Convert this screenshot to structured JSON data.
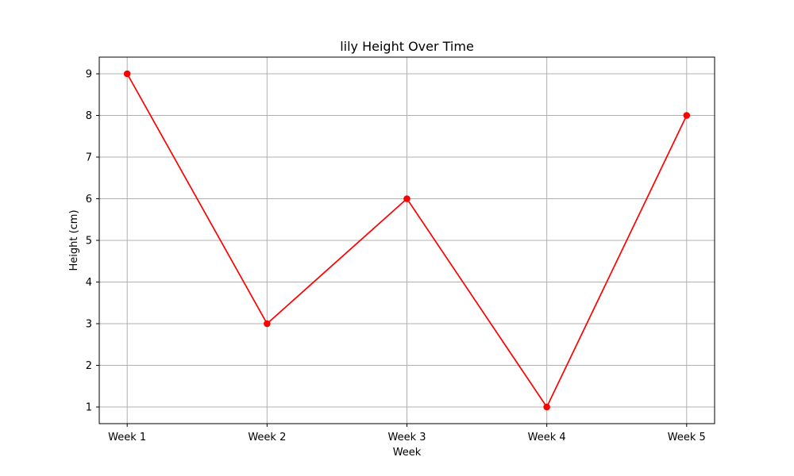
{
  "chart_data": {
    "type": "line",
    "title": "lily Height Over Time",
    "xlabel": "Week",
    "ylabel": "Height (cm)",
    "categories": [
      "Week 1",
      "Week 2",
      "Week 3",
      "Week 4",
      "Week 5"
    ],
    "series": [
      {
        "values": [
          9,
          3,
          6,
          1,
          8
        ],
        "color": "#ff0000",
        "marker": "circle"
      }
    ],
    "yticks": [
      1,
      2,
      3,
      4,
      5,
      6,
      7,
      8,
      9
    ],
    "ylim": [
      0.6,
      9.4
    ],
    "grid": true
  }
}
